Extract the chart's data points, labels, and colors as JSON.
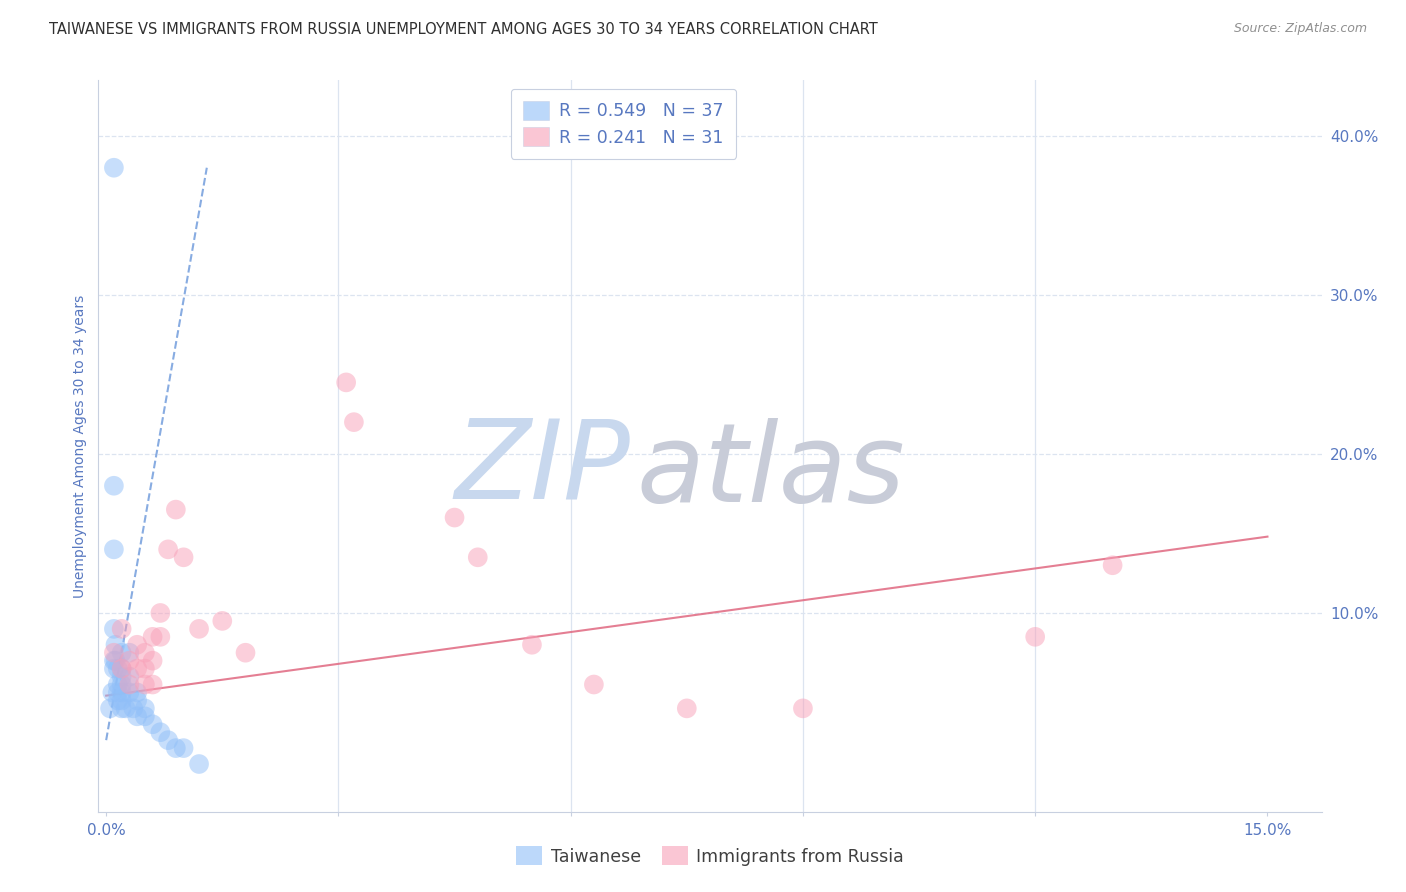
{
  "title": "TAIWANESE VS IMMIGRANTS FROM RUSSIA UNEMPLOYMENT AMONG AGES 30 TO 34 YEARS CORRELATION CHART",
  "source": "Source: ZipAtlas.com",
  "ylabel_label": "Unemployment Among Ages 30 to 34 years",
  "legend_r1": "R = 0.549",
  "legend_n1": "N = 37",
  "legend_r2": "R = 0.241",
  "legend_n2": "N = 31",
  "legend_label1": "Taiwanese",
  "legend_label2": "Immigrants from Russia",
  "watermark_zip": "ZIP",
  "watermark_atlas": "atlas",
  "watermark_zip_color": "#c8d8ee",
  "watermark_atlas_color": "#c8ccd8",
  "background_color": "#ffffff",
  "grid_color": "#dce4f0",
  "taiwanese_color": "#90bff8",
  "russian_color": "#f8a0b8",
  "taiwanese_trend_color": "#6090d8",
  "russian_trend_color": "#e06880",
  "axis_tick_color": "#5878c0",
  "title_color": "#303030",
  "source_color": "#909090",
  "taiwanese_x": [
    0.0005,
    0.0008,
    0.001,
    0.001,
    0.001,
    0.001,
    0.001,
    0.001,
    0.0012,
    0.0012,
    0.0015,
    0.0015,
    0.0015,
    0.0015,
    0.002,
    0.002,
    0.002,
    0.002,
    0.002,
    0.002,
    0.002,
    0.0025,
    0.003,
    0.003,
    0.003,
    0.0035,
    0.004,
    0.004,
    0.004,
    0.005,
    0.005,
    0.006,
    0.007,
    0.008,
    0.009,
    0.01,
    0.012
  ],
  "taiwanese_y": [
    0.04,
    0.05,
    0.38,
    0.18,
    0.14,
    0.09,
    0.07,
    0.065,
    0.08,
    0.07,
    0.065,
    0.055,
    0.05,
    0.045,
    0.075,
    0.065,
    0.06,
    0.055,
    0.05,
    0.045,
    0.04,
    0.04,
    0.075,
    0.06,
    0.05,
    0.04,
    0.05,
    0.045,
    0.035,
    0.04,
    0.035,
    0.03,
    0.025,
    0.02,
    0.015,
    0.015,
    0.005
  ],
  "russian_x": [
    0.001,
    0.002,
    0.002,
    0.003,
    0.003,
    0.004,
    0.004,
    0.005,
    0.005,
    0.005,
    0.006,
    0.006,
    0.006,
    0.007,
    0.007,
    0.008,
    0.009,
    0.01,
    0.012,
    0.015,
    0.018,
    0.031,
    0.032,
    0.045,
    0.048,
    0.055,
    0.063,
    0.075,
    0.09,
    0.12,
    0.13
  ],
  "russian_y": [
    0.075,
    0.09,
    0.065,
    0.07,
    0.055,
    0.08,
    0.065,
    0.075,
    0.065,
    0.055,
    0.085,
    0.07,
    0.055,
    0.1,
    0.085,
    0.14,
    0.165,
    0.135,
    0.09,
    0.095,
    0.075,
    0.245,
    0.22,
    0.16,
    0.135,
    0.08,
    0.055,
    0.04,
    0.04,
    0.085,
    0.13
  ],
  "tw_trend_x": [
    0.0,
    0.013
  ],
  "tw_trend_y": [
    0.02,
    0.38
  ],
  "ru_trend_x": [
    0.0,
    0.15
  ],
  "ru_trend_y": [
    0.048,
    0.148
  ],
  "xlim": [
    -0.001,
    0.157
  ],
  "ylim": [
    -0.025,
    0.435
  ],
  "xticks": [
    0.0,
    0.03,
    0.06,
    0.09,
    0.12,
    0.15
  ],
  "xlabels": [
    "0.0%",
    "",
    "",
    "",
    "",
    "15.0%"
  ],
  "yticks_right": [
    0.1,
    0.2,
    0.3,
    0.4
  ],
  "ylabels_right": [
    "10.0%",
    "20.0%",
    "30.0%",
    "40.0%"
  ],
  "title_fontsize": 10.5,
  "source_fontsize": 9,
  "tick_fontsize": 11,
  "ylabel_fontsize": 10,
  "legend_fontsize": 12.5,
  "watermark_fontsize_zip": 80,
  "watermark_fontsize_atlas": 80
}
